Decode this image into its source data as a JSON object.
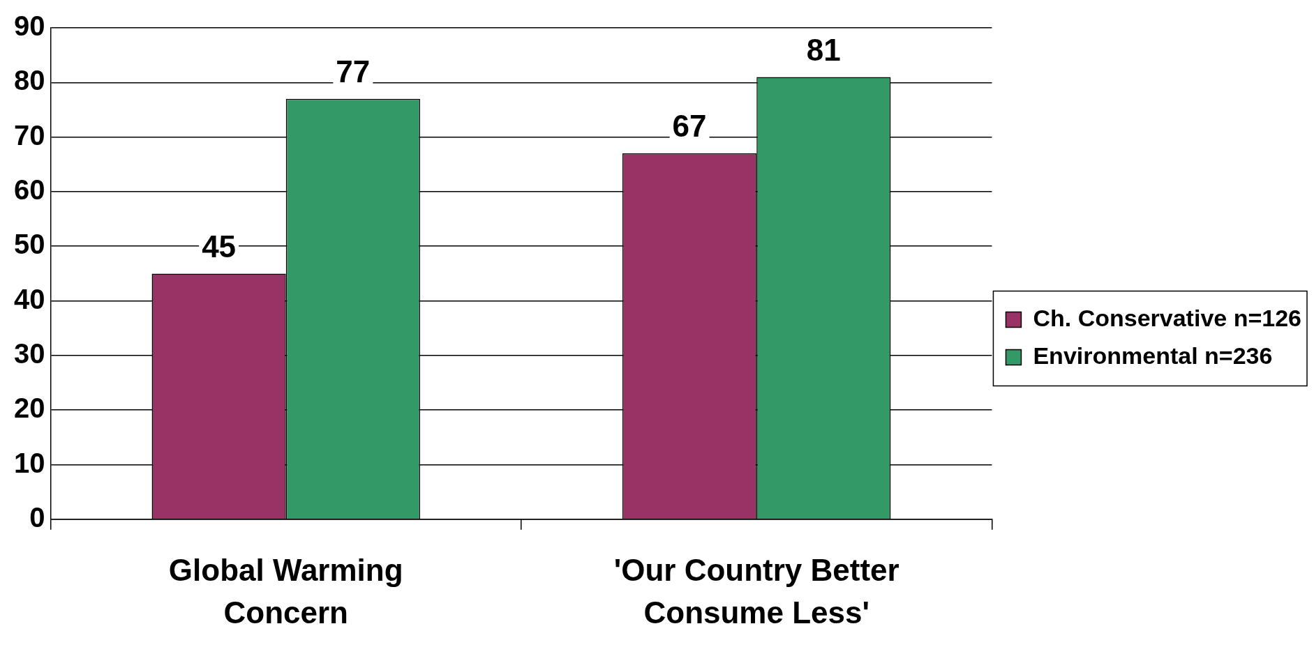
{
  "chart_data": {
    "type": "bar",
    "categories": [
      "Global Warming Concern",
      "'Our Country Better Consume Less'"
    ],
    "series": [
      {
        "name": "Ch. Conservative n=126",
        "color": "#993366",
        "values": [
          45,
          67
        ]
      },
      {
        "name": "Environmental n=236",
        "color": "#339966",
        "values": [
          77,
          81
        ]
      }
    ],
    "ylim": [
      0,
      90
    ],
    "yticks": [
      0,
      10,
      20,
      30,
      40,
      50,
      60,
      70,
      80,
      90
    ],
    "grid": "y",
    "legend": "right",
    "data_labels": true
  }
}
